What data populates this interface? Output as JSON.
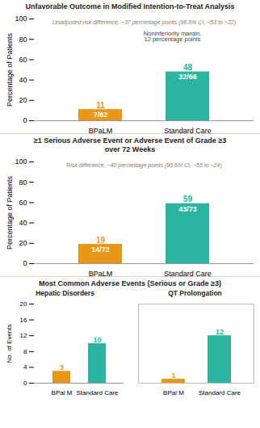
{
  "chart_data": [
    {
      "type": "bar",
      "title": "Unfavorable Outcome in Modified Intention-to-Treat Analysis",
      "annotations": [
        "Unadjusted risk difference, −37 percentage points (96.6% CI, −53 to −22)",
        "Noninferiority margin,\n12 percentage points"
      ],
      "categories": [
        "BPaLM",
        "Standard Care"
      ],
      "values": [
        11,
        48
      ],
      "sublabels": [
        "7/62",
        "32/66"
      ],
      "colors": [
        "#E8951A",
        "#2BB5A0"
      ],
      "ylim": [
        0,
        100
      ],
      "yticks": [
        0,
        20,
        40,
        60,
        80,
        100
      ],
      "ylabel": "Percentage of Patients",
      "data_labels": true
    },
    {
      "type": "bar",
      "title": "≥1 Serious Adverse Event or Adverse Event of Grade ≥3\nover 72 Weeks",
      "annotations": [
        "Risk difference, −40 percentage points (96.6% CI, −55 to −24)"
      ],
      "categories": [
        "BPaLM",
        "Standard Care"
      ],
      "values": [
        19,
        59
      ],
      "sublabels": [
        "14/72",
        "43/73"
      ],
      "colors": [
        "#E8951A",
        "#2BB5A0"
      ],
      "ylim": [
        0,
        100
      ],
      "yticks": [
        0,
        20,
        40,
        60,
        80,
        100
      ],
      "ylabel": "Percentage of Patients",
      "data_labels": true
    },
    {
      "type": "bar",
      "title": "Most Common Adverse Events (Serious or Grade ≥3)",
      "subtitle": "Hepatic Disorders",
      "categories": [
        "BPal M",
        "Standard Care"
      ],
      "values": [
        3,
        10
      ],
      "colors": [
        "#E8951A",
        "#2BB5A0"
      ],
      "ylim": [
        0,
        20
      ],
      "yticks": [
        0,
        4,
        8,
        12,
        16,
        20
      ],
      "ylabel": "No. of Events",
      "data_labels": true
    },
    {
      "type": "bar",
      "subtitle": "QT Prolongation",
      "categories": [
        "BPal M",
        "Standard Care"
      ],
      "values": [
        1,
        12
      ],
      "colors": [
        "#E8951A",
        "#2BB5A0"
      ],
      "ylim": [
        0,
        20
      ],
      "tick_labels": "x",
      "data_labels": true
    }
  ]
}
